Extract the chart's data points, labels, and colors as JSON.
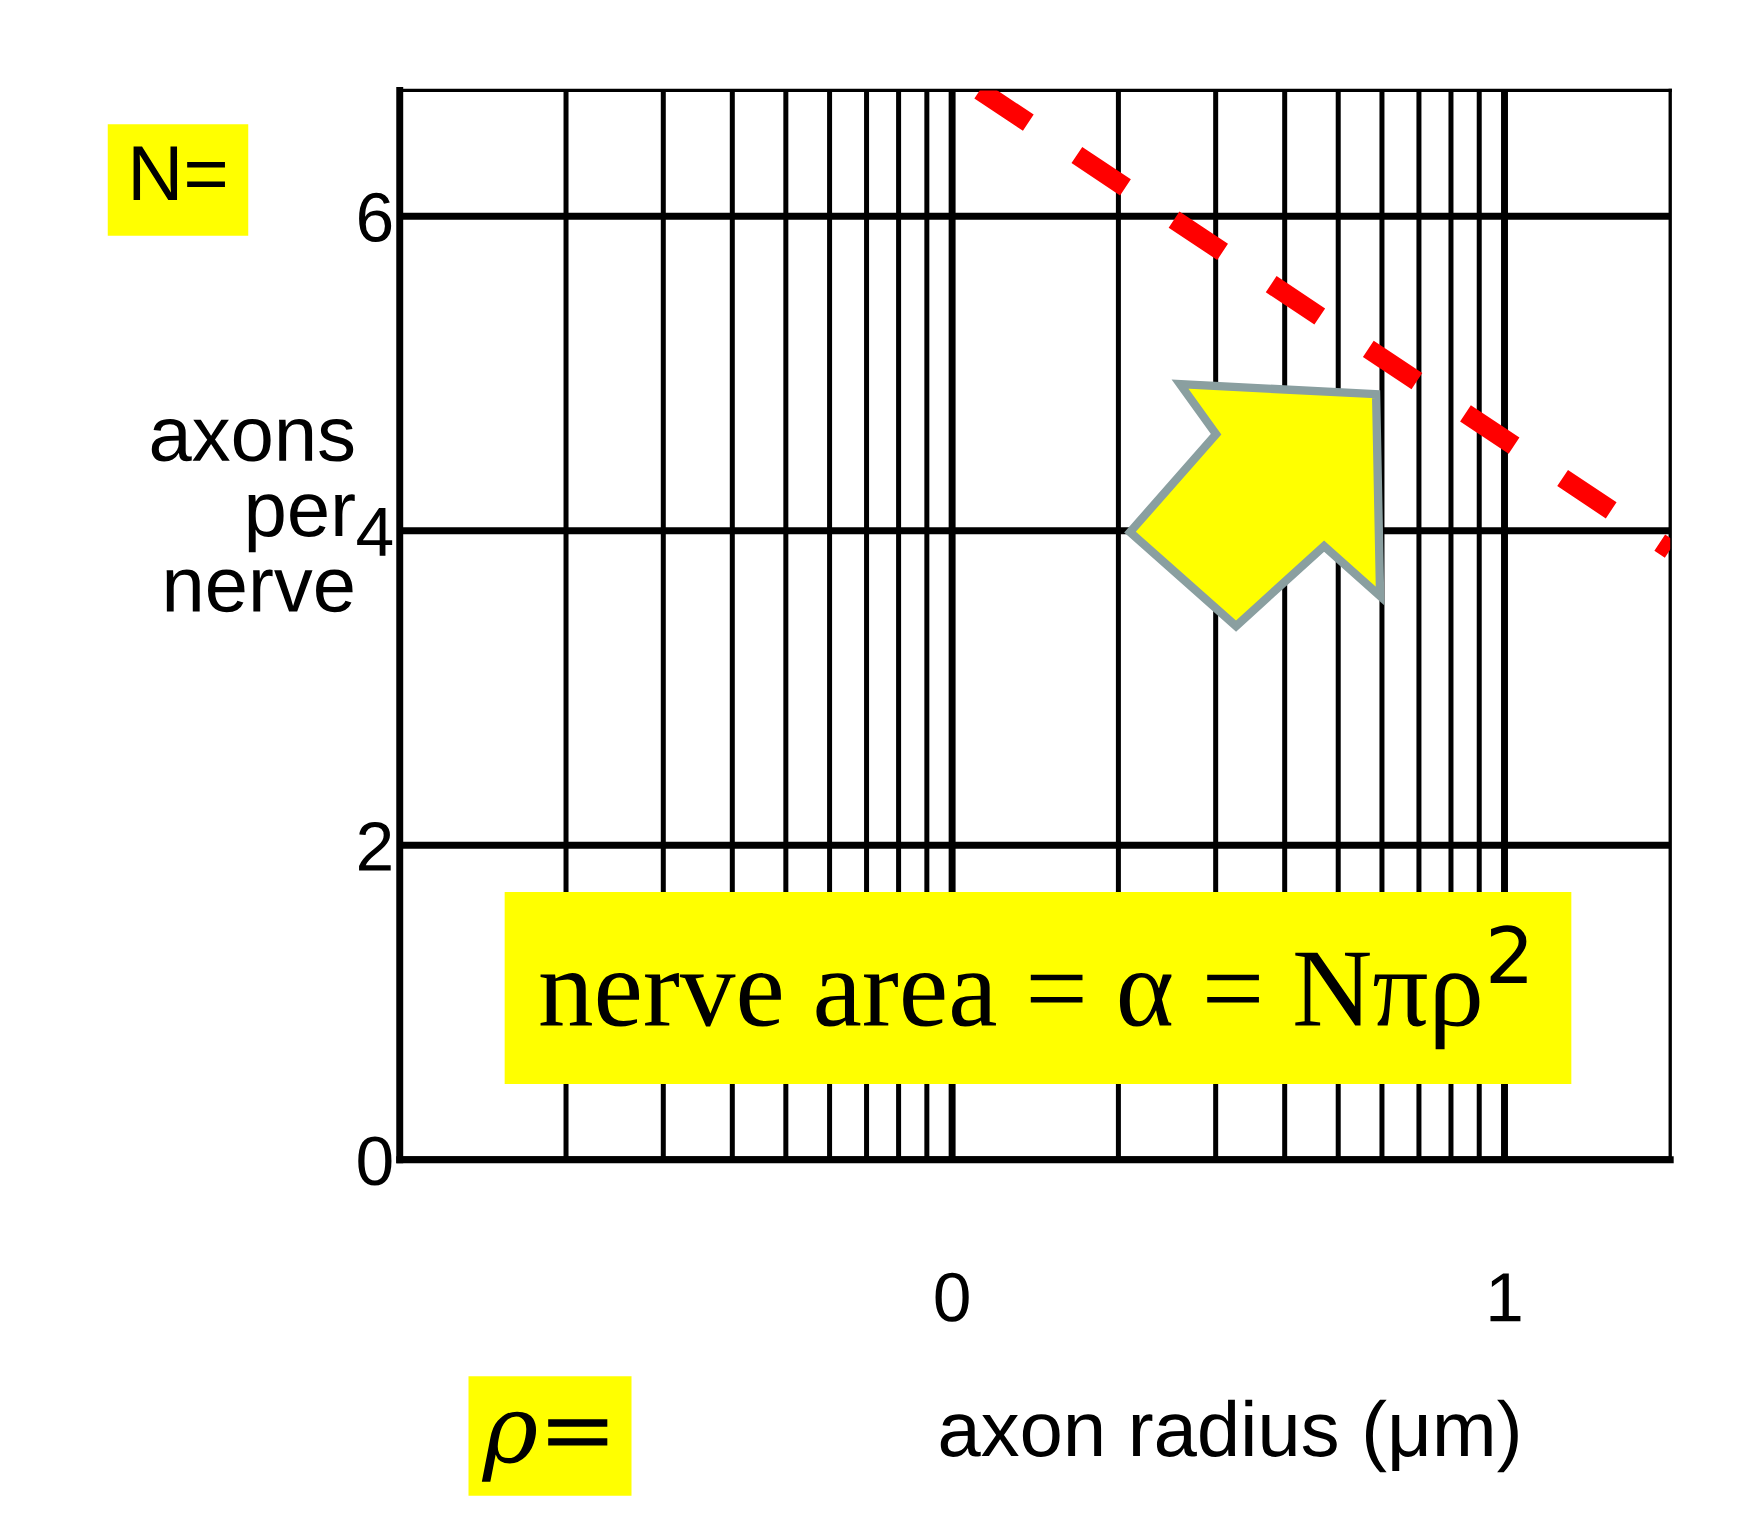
{
  "chart_data": {
    "type": "line",
    "xlabel": "axon radius (μm)",
    "ylabel": "axons\nper\nnerve",
    "xlim": [
      -1,
      1.3
    ],
    "xticks": [
      0,
      1
    ],
    "ylim": [
      0,
      6.8
    ],
    "yticks": [
      0,
      2,
      4,
      6
    ],
    "grid": true,
    "series": [
      {
        "x": [
          0.05,
          1.3
        ],
        "values": [
          6.8,
          3.88
        ],
        "color": "#ff0000",
        "line_style": "dashed"
      }
    ],
    "annotations": [
      "N=",
      "ρ=",
      "nerve area = α = Nπρ$^{2}$"
    ]
  }
}
